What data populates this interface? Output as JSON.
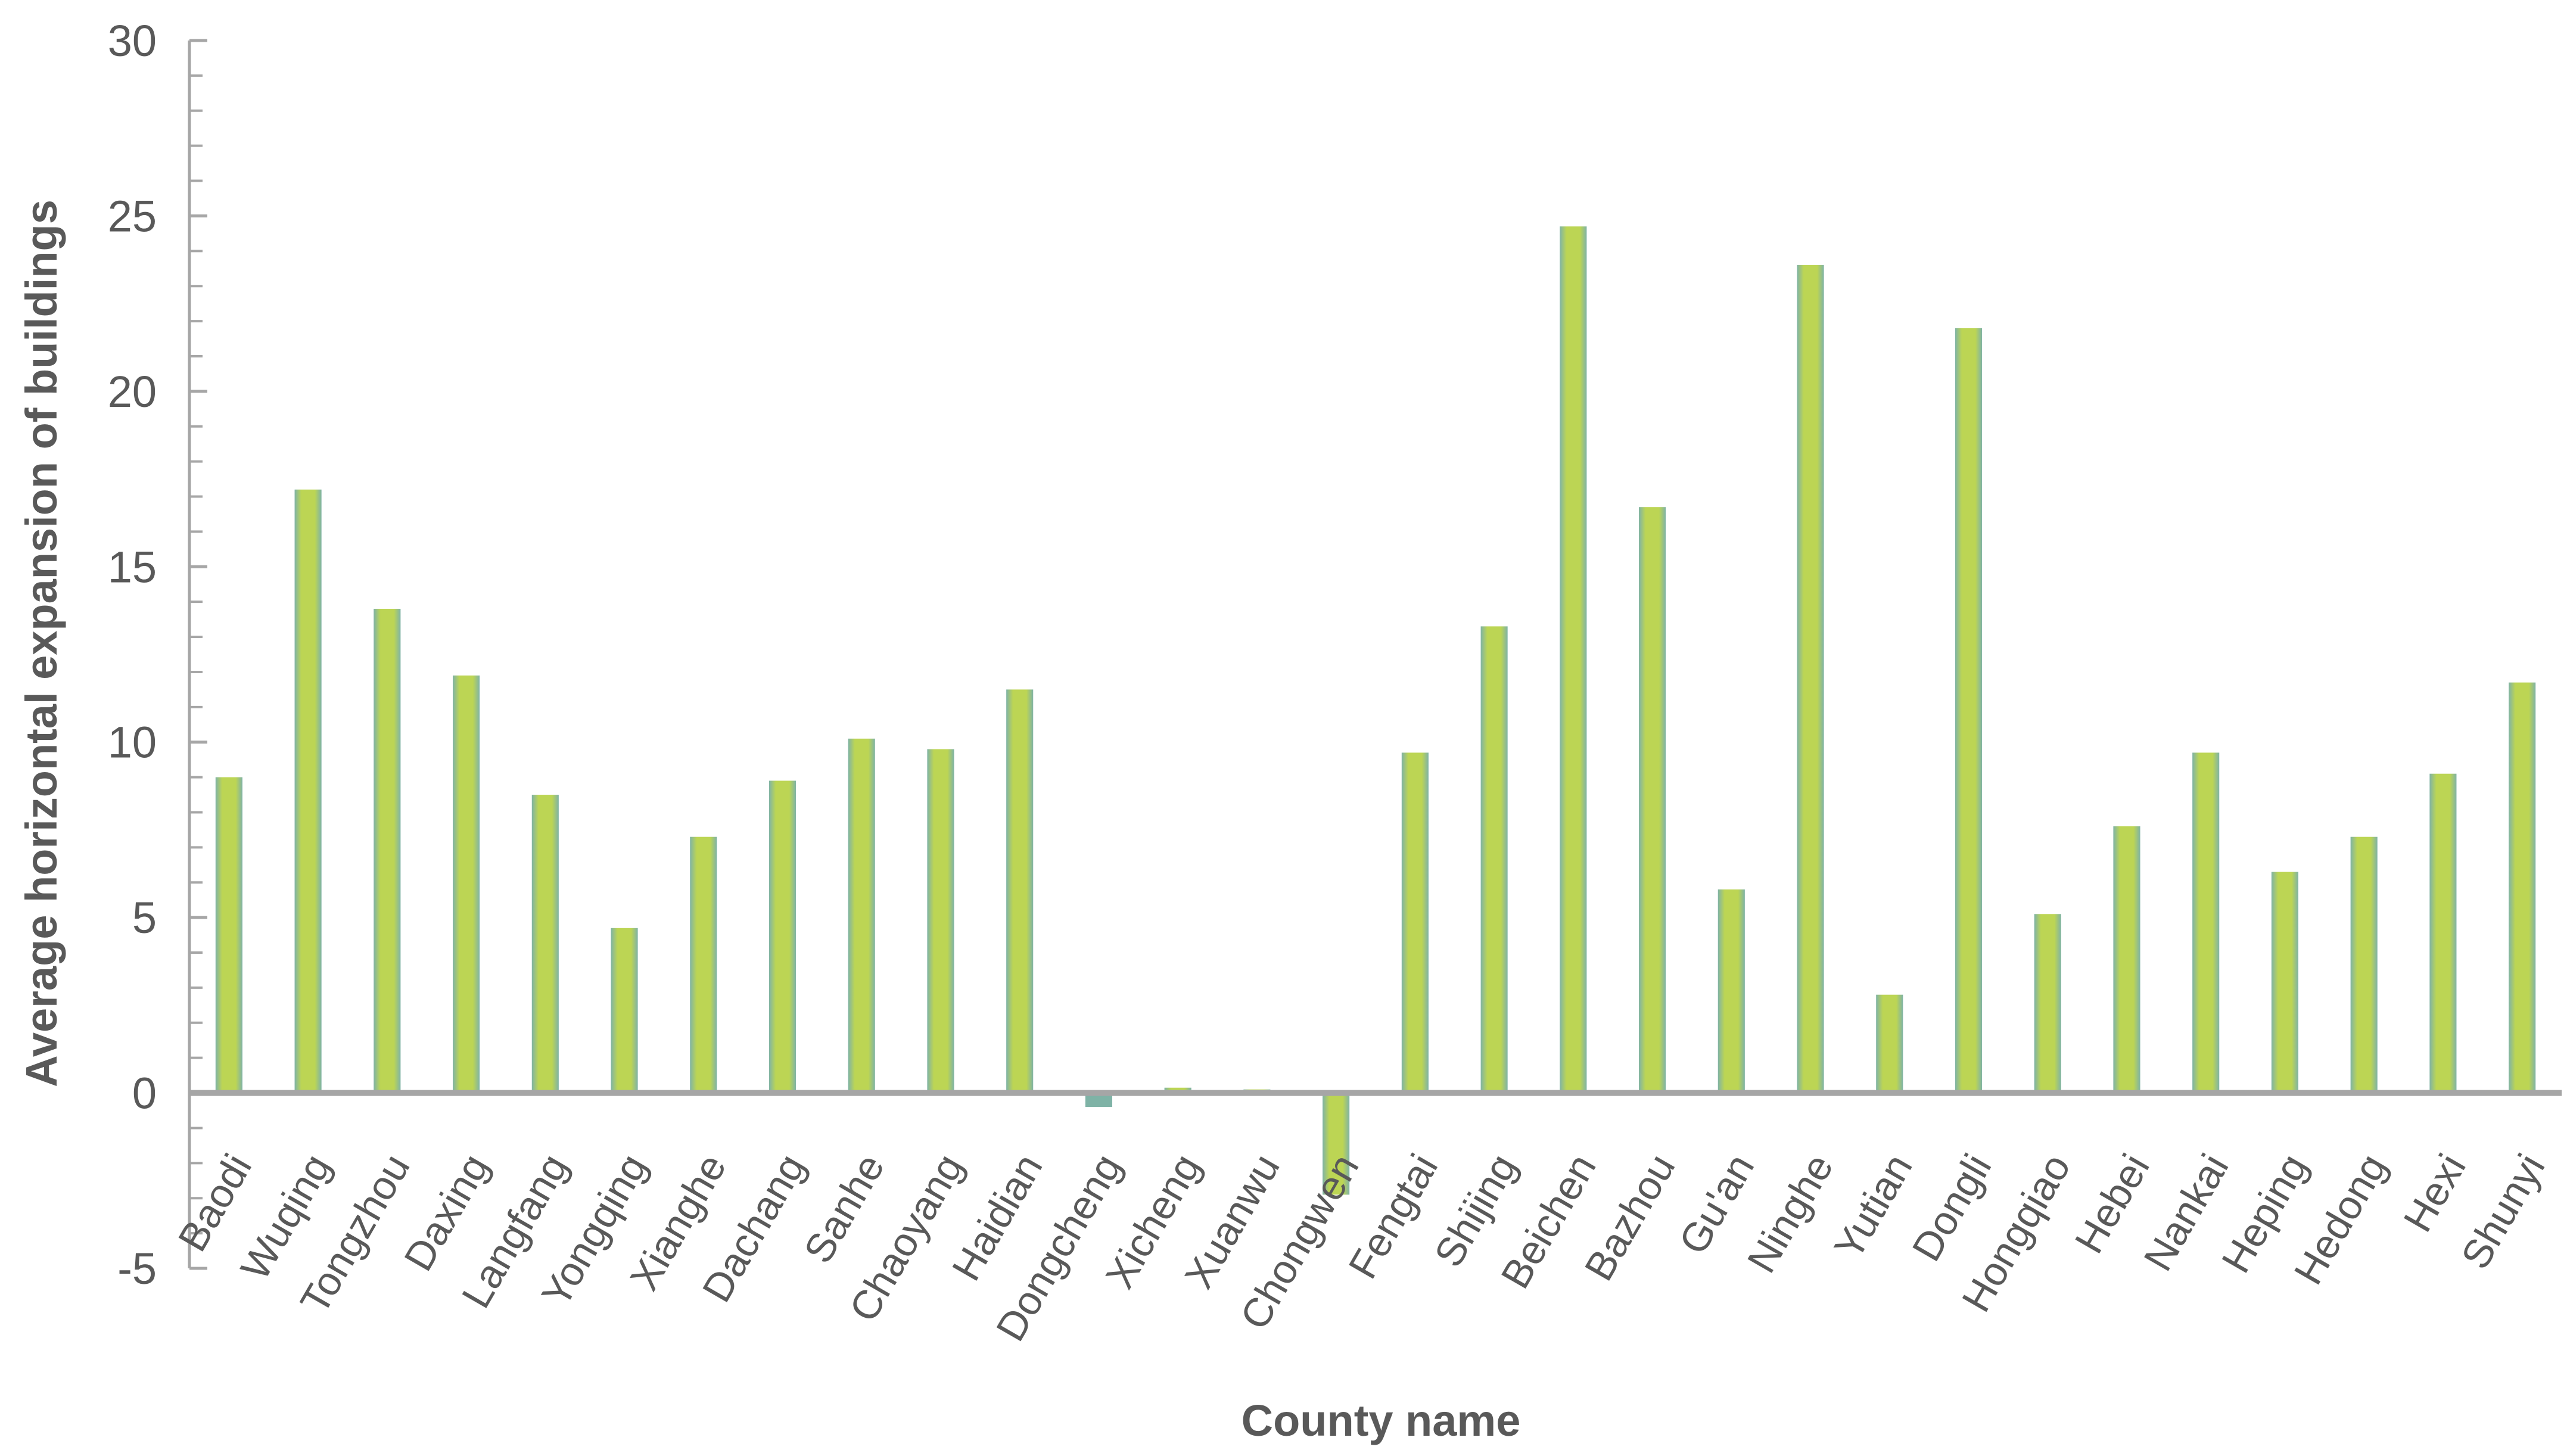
{
  "chart_data": {
    "type": "bar",
    "title": "",
    "xlabel": "County name",
    "ylabel": "Average horizontal expansion of  buildings",
    "ylim": [
      -5,
      30
    ],
    "yticks": [
      -5,
      0,
      5,
      10,
      15,
      20,
      25,
      30
    ],
    "grid": false,
    "legend": "none",
    "bar_color": "#bcd554",
    "bar_edge_color": "#7fb3a6",
    "axis_color": "#a6a6a6",
    "categories": [
      "Baodi",
      "Wuqing",
      "Tongzhou",
      "Daxing",
      "Langfang",
      "Yongqing",
      "Xianghe",
      "Dachang",
      "Sanhe",
      "Chaoyang",
      "Haidian",
      "Dongcheng",
      "Xicheng",
      "Xuanwu",
      "Chongwen",
      "Fengtai",
      "Shijing",
      "Beichen",
      "Bazhou",
      "Gu'an",
      "Ninghe",
      "Yutian",
      "Dongli",
      "Hongqiao",
      "Hebei",
      "Nankai",
      "Heping",
      "Hedong",
      "Hexi",
      "Shunyi"
    ],
    "values": [
      9.0,
      17.2,
      13.8,
      11.9,
      8.5,
      4.7,
      7.3,
      8.9,
      10.1,
      9.8,
      11.5,
      -0.4,
      0.15,
      0.1,
      -2.9,
      9.7,
      13.3,
      24.7,
      16.7,
      5.8,
      23.6,
      2.8,
      21.8,
      5.1,
      7.6,
      9.7,
      6.3,
      7.3,
      9.1,
      11.7
    ]
  }
}
